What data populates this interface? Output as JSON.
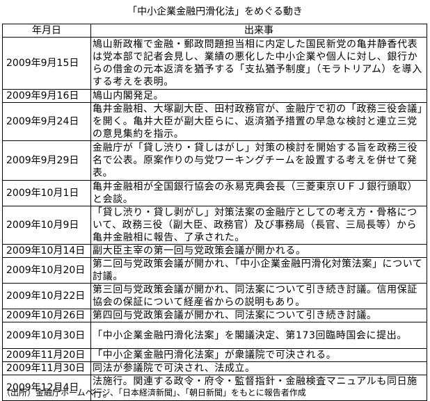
{
  "title": "「中小企業金融円滑化法」をめぐる動き",
  "table": {
    "header": [
      "年月日",
      "出来事"
    ],
    "rows": [
      [
        "2009年9月15日",
        "鳩山新政権で金融・郵政問題担当相に内定した国民新党の亀井静香代表は党本部で記者会見し、業績の悪化した中小企業や個人に対し、銀行からの借金の元本返済を猶予する「支払猶予制度」（モラトリアム）を導入する考えを表明。"
      ],
      [
        "2009年9月16日",
        "鳩山内閣発足。"
      ],
      [
        "2009年9月24日",
        "亀井金融相、大塚副大臣、田村政務官が、金融庁で初の「政務三役会議」を開く。亀井大臣が副大臣らに、返済猶予措置の早急な検討と連立三党の意見集約を指示。"
      ],
      [
        "2009年9月29日",
        "金融庁が「貸し渋り・貸しはがし」対策の検討を開始する旨を政務三役名で公表。原案作りの与党ワーキングチームを設置する考えを併せて発表。"
      ],
      [
        "2009年10月1日",
        "亀井金融相が全国銀行協会の永易克典会長（三菱東京ＵＦＪ銀行頭取）と会談。"
      ],
      [
        "2009年10月9日",
        "「貸し渋り・貸し剥がし」対策法案の金融庁としての考え方・骨格について、政務三役（副大臣、政務官）及び事務局（長官、三局長等）から亀井金融相に報告、了承された。"
      ],
      [
        "2009年10月14日",
        "副大臣主宰の第一回与党政策会議が開かれる。"
      ],
      [
        "2009年10月20日",
        "第二回与党政策会議が開かれ、「中小企業金融円滑化対策法案」について討議。"
      ],
      [
        "2009年10月22日",
        "第三回与党政策会議が開かれ、同法案について引き続き討議。信用保証協会の保証について経産省からの説明もあり。"
      ],
      [
        "2009年10月26日",
        "第四回与党政策会議が開かれ、同法案について引き続き討議。"
      ],
      [
        "2009年10月30日",
        "「中小企業金融円滑化法案」を閣議決定、第173回臨時国会に提出。"
      ],
      [
        "2009年11月20日",
        "「中小企業金融円滑化法案」が衆議院で可決される。"
      ],
      [
        "2009年11月30日",
        "同法が参議院で可決され、法成立。"
      ],
      [
        "2009年12月4日",
        "法施行。関連する政令・府令・監督指針・金融検査マニュアルも同日施行。"
      ]
    ]
  },
  "note": "（出所）金融庁ホームページ、「日本経済新聞」、「朝日新聞」をもとに報告者作成"
}
